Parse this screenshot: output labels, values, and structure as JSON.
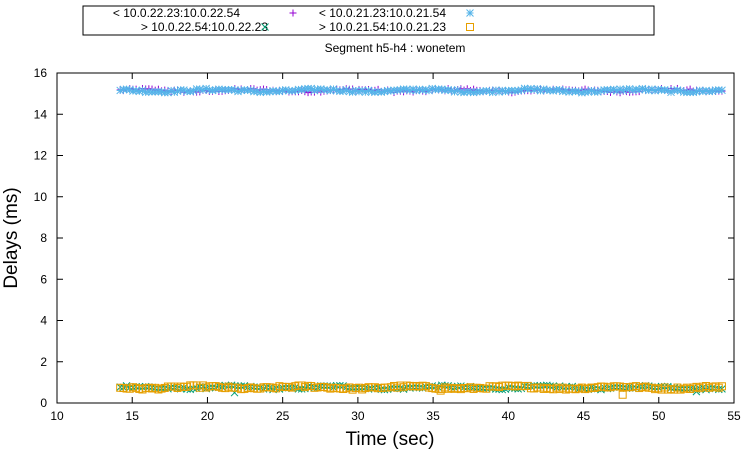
{
  "chart_data": {
    "type": "scatter",
    "title": "Segment h5-h4 : wonetem",
    "xlabel": "Time (sec)",
    "ylabel": "Delays (ms)",
    "xlim": [
      10,
      55
    ],
    "ylim": [
      0,
      16
    ],
    "xticks": [
      "10",
      "15",
      "20",
      "25",
      "30",
      "35",
      "40",
      "45",
      "50",
      "55"
    ],
    "yticks": [
      "0",
      "2",
      "4",
      "6",
      "8",
      "10",
      "12",
      "14",
      "16"
    ],
    "grid": false,
    "legend_placement": "top, above plot (boxed, 2 columns)",
    "x_range_of_points": [
      14.2,
      54.2
    ],
    "series": [
      {
        "name": "< 10.0.22.23:10.0.22.54",
        "marker": "plus",
        "color": "#9400d3",
        "level": 15.15,
        "spread": 0.12
      },
      {
        "name": "> 10.0.22.54:10.0.22.23",
        "marker": "cross",
        "color": "#009e73",
        "level": 0.75,
        "spread": 0.12,
        "outliers": [
          [
            21.8,
            0.5
          ],
          [
            52.5,
            0.55
          ]
        ]
      },
      {
        "name": "< 10.0.21.23:10.0.21.54",
        "marker": "asterisk",
        "color": "#56b4e9",
        "level": 15.15,
        "spread": 0.12
      },
      {
        "name": "> 10.0.21.54:10.0.21.23",
        "marker": "square",
        "color": "#e69f00",
        "level": 0.75,
        "spread": 0.12,
        "outliers": [
          [
            47.6,
            0.4
          ],
          [
            35.5,
            0.6
          ]
        ]
      }
    ]
  }
}
